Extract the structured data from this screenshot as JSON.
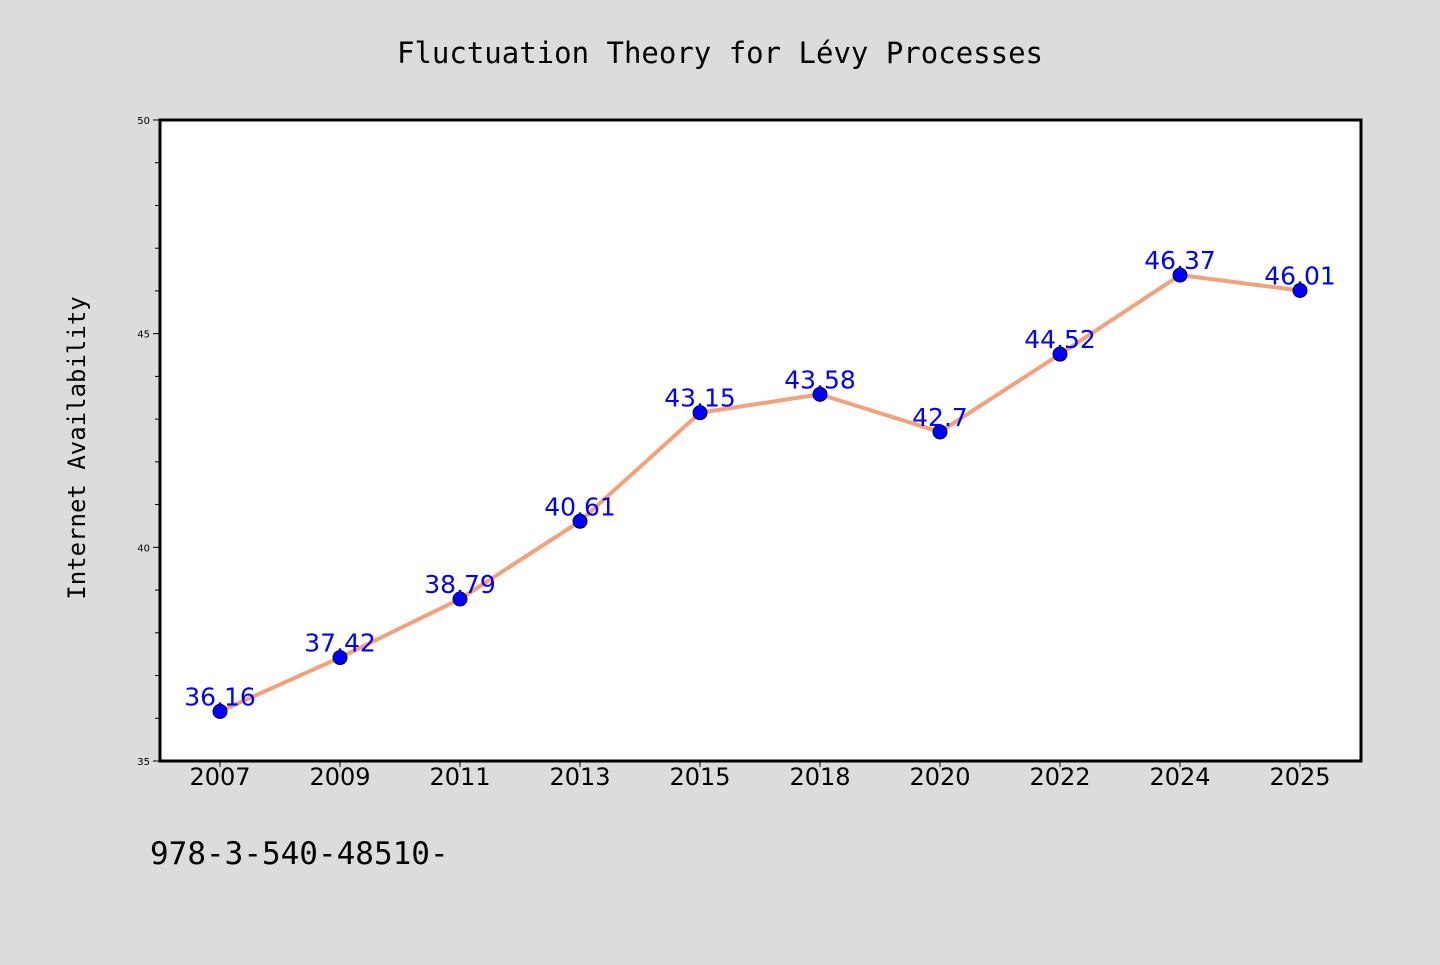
{
  "colors": {
    "background": "#dcdcdc",
    "plot_background": "#ffffff",
    "line": "#f4a07a",
    "marker": "#0000ff",
    "data_label": "#0000ff",
    "axis": "#000000"
  },
  "footer_text": "978-3-540-48510-",
  "chart_data": {
    "type": "line",
    "title": "Fluctuation Theory for Lévy Processes",
    "xlabel": "",
    "ylabel": "Internet Availability",
    "categories": [
      "2007",
      "2009",
      "2011",
      "2013",
      "2015",
      "2018",
      "2020",
      "2022",
      "2024",
      "2025"
    ],
    "values": [
      36.16,
      37.42,
      38.79,
      40.61,
      43.15,
      43.58,
      42.7,
      44.52,
      46.37,
      46.01
    ],
    "data_labels": [
      "36.16",
      "37.42",
      "38.79",
      "40.61",
      "43.15",
      "43.58",
      "42.7",
      "44.52",
      "46.37",
      "46.01"
    ],
    "ylim": [
      35,
      50
    ],
    "yticks": [
      35,
      40,
      45,
      50
    ],
    "grid": false,
    "legend": "none",
    "marker": "circle"
  }
}
